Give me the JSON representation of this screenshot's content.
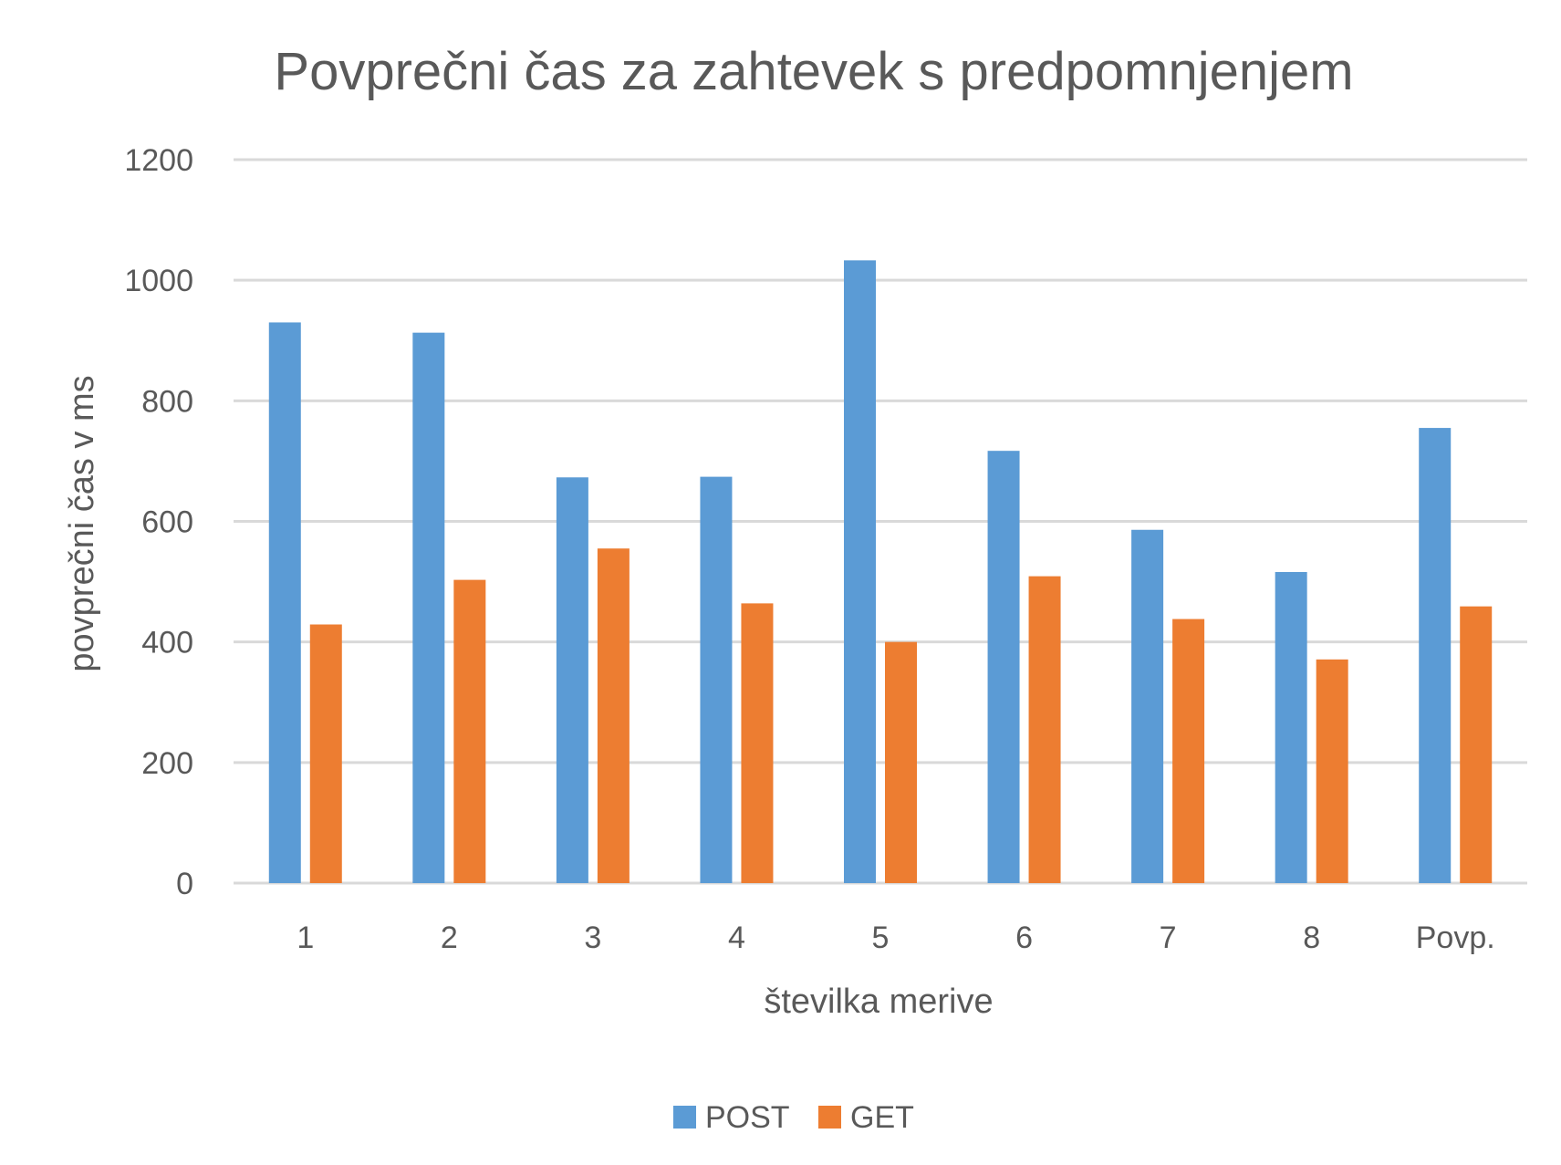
{
  "chart_data": {
    "type": "bar",
    "title": "Povprečni čas za zahtevek s predpomnjenjem",
    "xlabel": "številka merive",
    "ylabel": "povprečni čas v ms",
    "categories": [
      "1",
      "2",
      "3",
      "4",
      "5",
      "6",
      "7",
      "8",
      "Povp."
    ],
    "series": [
      {
        "name": "POST",
        "color": "#5b9bd5",
        "values": [
          930,
          913,
          673,
          674,
          1033,
          717,
          586,
          516,
          755
        ]
      },
      {
        "name": "GET",
        "color": "#ed7d31",
        "values": [
          429,
          503,
          555,
          464,
          400,
          509,
          438,
          371,
          459
        ]
      }
    ],
    "ylim": [
      0,
      1200
    ],
    "yticks": [
      0,
      200,
      400,
      600,
      800,
      1000,
      1200
    ],
    "grid": true,
    "legend": "bottom"
  }
}
